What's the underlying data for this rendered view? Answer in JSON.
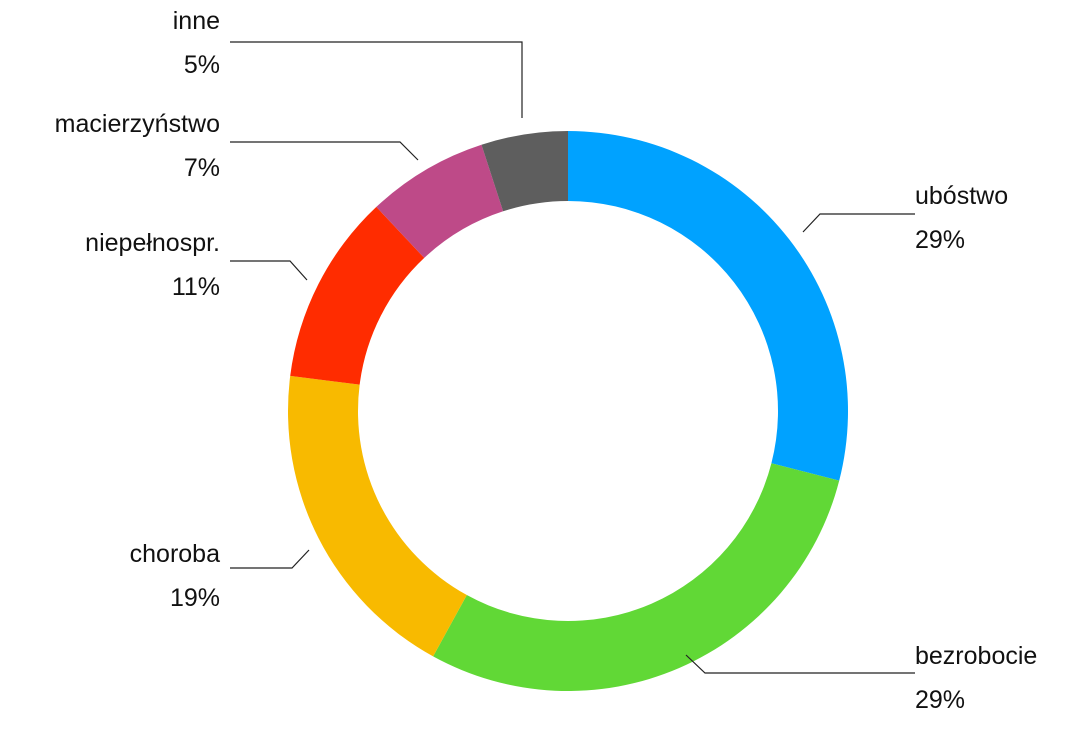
{
  "chart_data": {
    "type": "pie",
    "variant": "donut",
    "title": "",
    "slices": [
      {
        "label": "ubóstwo",
        "value": 29,
        "value_label": "29%",
        "color": "#00A2FF"
      },
      {
        "label": "bezrobocie",
        "value": 29,
        "value_label": "29%",
        "color": "#61D836"
      },
      {
        "label": "choroba",
        "value": 19,
        "value_label": "19%",
        "color": "#F8BA00"
      },
      {
        "label": "niepełnospr.",
        "value": 11,
        "value_label": "11%",
        "color": "#FF2C00"
      },
      {
        "label": "macierzyństwo",
        "value": 7,
        "value_label": "7%",
        "color": "#BE4A88"
      },
      {
        "label": "inne",
        "value": 5,
        "value_label": "5%",
        "color": "#5E5E5E"
      }
    ],
    "start": "top",
    "direction": "clockwise",
    "labels": "outside with leader lines"
  }
}
